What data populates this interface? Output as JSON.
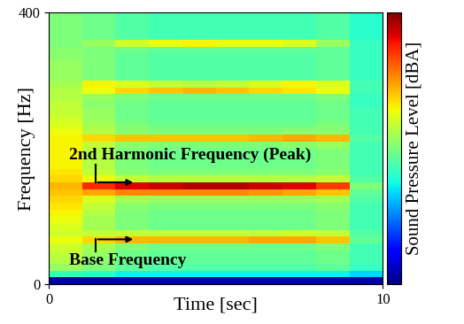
{
  "chart_data": {
    "type": "heatmap",
    "x_label": "Time [sec]",
    "y_label": "Frequency [Hz]",
    "colorbar_label": "Sound Pressure Level [dBA]",
    "xlim": [
      0,
      10
    ],
    "ylim": [
      0,
      400
    ],
    "xticks": [
      0,
      10
    ],
    "yticks": [
      0,
      400
    ],
    "annotations": [
      "2nd Harmonic Frequency (Peak)",
      "Base Frequency"
    ],
    "color_range": [
      20,
      80
    ],
    "time_bins": [
      0,
      1,
      2,
      3,
      4,
      5,
      6,
      7,
      8,
      9,
      10
    ],
    "frequency_bins": [
      0,
      10,
      20,
      30,
      40,
      50,
      60,
      70,
      80,
      90,
      100,
      110,
      120,
      130,
      140,
      150,
      160,
      170,
      180,
      190,
      200,
      210,
      220,
      230,
      240,
      250,
      260,
      270,
      280,
      290,
      300,
      310,
      320,
      330,
      340,
      350,
      360,
      370,
      380,
      390,
      400
    ],
    "cells": [
      [
        22,
        22,
        22,
        22,
        22,
        22,
        22,
        22,
        22,
        22
      ],
      [
        45,
        44,
        42,
        42,
        42,
        42,
        42,
        42,
        42,
        40
      ],
      [
        52,
        50,
        48,
        47,
        47,
        47,
        47,
        47,
        48,
        45
      ],
      [
        54,
        51,
        49,
        48,
        48,
        48,
        48,
        48,
        49,
        46
      ],
      [
        55,
        52,
        49,
        48,
        48,
        48,
        48,
        48,
        49,
        46
      ],
      [
        56,
        53,
        50,
        49,
        49,
        49,
        49,
        49,
        50,
        46
      ],
      [
        58,
        61,
        63,
        63,
        63,
        63,
        64,
        64,
        62,
        48
      ],
      [
        56,
        55,
        55,
        55,
        55,
        55,
        55,
        56,
        55,
        47
      ],
      [
        57,
        53,
        50,
        49,
        49,
        49,
        49,
        49,
        50,
        46
      ],
      [
        58,
        53,
        50,
        49,
        49,
        49,
        49,
        49,
        50,
        46
      ],
      [
        59,
        54,
        50,
        49,
        49,
        49,
        49,
        49,
        50,
        46
      ],
      [
        60,
        55,
        51,
        50,
        50,
        50,
        50,
        50,
        51,
        46
      ],
      [
        61,
        57,
        53,
        52,
        52,
        52,
        52,
        52,
        53,
        47
      ],
      [
        62,
        64,
        66,
        66,
        66,
        66,
        65,
        64,
        62,
        48
      ],
      [
        63,
        72,
        75,
        76,
        77,
        77,
        76,
        75,
        71,
        50
      ],
      [
        61,
        58,
        55,
        54,
        54,
        54,
        54,
        54,
        55,
        47
      ],
      [
        60,
        55,
        51,
        50,
        50,
        50,
        50,
        50,
        51,
        46
      ],
      [
        59,
        54,
        50,
        49,
        49,
        49,
        49,
        49,
        50,
        46
      ],
      [
        59,
        54,
        50,
        49,
        49,
        49,
        49,
        49,
        50,
        46
      ],
      [
        59,
        54,
        50,
        49,
        49,
        49,
        49,
        49,
        50,
        46
      ],
      [
        59,
        55,
        51,
        50,
        50,
        50,
        50,
        51,
        52,
        46
      ],
      [
        59,
        61,
        62,
        62,
        62,
        62,
        63,
        64,
        63,
        47
      ],
      [
        58,
        54,
        51,
        50,
        50,
        50,
        50,
        51,
        51,
        46
      ],
      [
        57,
        53,
        50,
        49,
        49,
        49,
        49,
        49,
        50,
        46
      ],
      [
        56,
        52,
        49,
        48,
        48,
        48,
        48,
        48,
        49,
        46
      ],
      [
        55,
        52,
        49,
        48,
        48,
        48,
        48,
        48,
        49,
        46
      ],
      [
        55,
        51,
        49,
        48,
        48,
        48,
        48,
        48,
        49,
        45
      ],
      [
        54,
        52,
        50,
        49,
        49,
        49,
        49,
        49,
        50,
        45
      ],
      [
        54,
        58,
        61,
        62,
        63,
        62,
        61,
        60,
        58,
        46
      ],
      [
        53,
        59,
        57,
        55,
        54,
        55,
        57,
        59,
        57,
        46
      ],
      [
        52,
        50,
        48,
        47,
        47,
        47,
        47,
        47,
        48,
        45
      ],
      [
        52,
        50,
        48,
        47,
        47,
        47,
        47,
        47,
        48,
        45
      ],
      [
        52,
        50,
        48,
        47,
        47,
        47,
        47,
        47,
        48,
        45
      ],
      [
        51,
        50,
        48,
        47,
        47,
        47,
        47,
        47,
        48,
        45
      ],
      [
        51,
        50,
        49,
        48,
        48,
        48,
        48,
        48,
        48,
        45
      ],
      [
        50,
        52,
        56,
        58,
        59,
        58,
        58,
        57,
        52,
        45
      ],
      [
        50,
        49,
        47,
        46,
        46,
        46,
        46,
        46,
        47,
        44
      ],
      [
        50,
        49,
        47,
        46,
        46,
        46,
        46,
        46,
        47,
        44
      ],
      [
        50,
        49,
        47,
        46,
        46,
        46,
        46,
        46,
        47,
        44
      ],
      [
        50,
        49,
        47,
        46,
        46,
        46,
        46,
        46,
        47,
        44
      ]
    ]
  }
}
